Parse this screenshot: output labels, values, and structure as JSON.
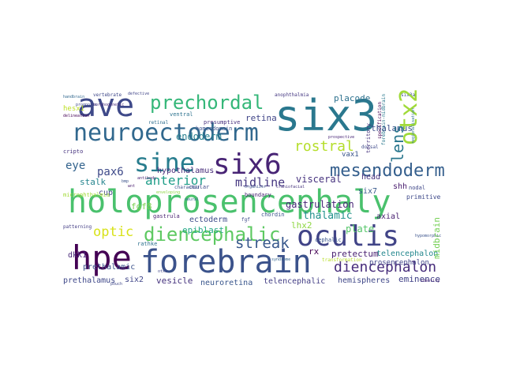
{
  "words": [
    {
      "t": "holoprosencephaly",
      "c": "#4ac16d"
    },
    {
      "t": "six3",
      "c": "#2a788e"
    },
    {
      "t": "forebrain",
      "c": "#3b528b"
    },
    {
      "t": "ave",
      "c": "#3e4989"
    },
    {
      "t": "hpe",
      "c": "#440154"
    },
    {
      "t": "oculis",
      "c": "#414487"
    },
    {
      "t": "six6",
      "c": "#482475"
    },
    {
      "t": "neuroectoderm",
      "c": "#31688e"
    },
    {
      "t": "sine",
      "c": "#287d8e"
    },
    {
      "t": "prechordal",
      "c": "#35b779"
    },
    {
      "t": "otx2",
      "c": "#a0da39"
    },
    {
      "t": "diencephalic",
      "c": "#5ec962"
    },
    {
      "t": "mesendoderm",
      "c": "#355f8d"
    },
    {
      "t": "lens",
      "c": "#2a778e"
    },
    {
      "t": "rostral",
      "c": "#b5de2b"
    },
    {
      "t": "diencephalon",
      "c": "#472d7b"
    },
    {
      "t": "streak",
      "c": "#38588c"
    },
    {
      "t": "anterior",
      "c": "#1f9e89"
    },
    {
      "t": "optic",
      "c": "#d8e219"
    },
    {
      "t": "midline",
      "c": "#453781"
    },
    {
      "t": "pax6",
      "c": "#3e4a89"
    },
    {
      "t": "eye",
      "c": "#33638d"
    },
    {
      "t": "endoderm",
      "c": "#277f8e"
    },
    {
      "t": "retina",
      "c": "#404588"
    },
    {
      "t": "placode",
      "c": "#2d718e"
    },
    {
      "t": "visceral",
      "c": "#46327e"
    },
    {
      "t": "thalamus",
      "c": "#3c4f8a"
    },
    {
      "t": "gastrulation",
      "c": "#482677"
    },
    {
      "t": "thalamic",
      "c": "#21918c"
    },
    {
      "t": "plate",
      "c": "#54c568"
    },
    {
      "t": "epiblast",
      "c": "#22a884"
    },
    {
      "t": "ectoderm",
      "c": "#3e4c8a"
    },
    {
      "t": "pretectum",
      "c": "#481f70"
    },
    {
      "t": "telencephalon",
      "c": "#24878e"
    },
    {
      "t": "hemispheres",
      "c": "#3f4788"
    },
    {
      "t": "eminence",
      "c": "#414287"
    },
    {
      "t": "vesicle",
      "c": "#46337e"
    },
    {
      "t": "neuroretina",
      "c": "#39568c"
    },
    {
      "t": "telencephalic",
      "c": "#433e85"
    },
    {
      "t": "prethalamus",
      "c": "#3f4889"
    },
    {
      "t": "six2",
      "c": "#404688"
    },
    {
      "t": "prethalamic",
      "c": "#3b518b"
    },
    {
      "t": "dkk1",
      "c": "#482878"
    },
    {
      "t": "fgf8",
      "c": "#7ad151"
    },
    {
      "t": "stalk",
      "c": "#25848e"
    },
    {
      "t": "cup",
      "c": "#414487"
    },
    {
      "t": "hypothalamus",
      "c": "#472c7a"
    },
    {
      "t": "head",
      "c": "#46307e"
    },
    {
      "t": "shh",
      "c": "#481b6d"
    },
    {
      "t": "six7",
      "c": "#38598c"
    },
    {
      "t": "lhx2",
      "c": "#8fd744"
    },
    {
      "t": "axial",
      "c": "#482071"
    },
    {
      "t": "rx",
      "c": "#440154"
    },
    {
      "t": "prosencephalon",
      "c": "#404588"
    },
    {
      "t": "midbrain",
      "c": "#75d054"
    },
    {
      "t": "hesx1",
      "c": "#bddf26"
    },
    {
      "t": "vax1",
      "c": "#3a548c"
    },
    {
      "t": "presumptive",
      "c": "#472f7d"
    },
    {
      "t": "homeodomain",
      "c": "#3b528b"
    },
    {
      "t": "ocular",
      "c": "#3e4989"
    },
    {
      "t": "boundary",
      "c": "#482173"
    },
    {
      "t": "ventral",
      "c": "#2c728e"
    },
    {
      "t": "retinal",
      "c": "#2e6e8e"
    },
    {
      "t": "character",
      "c": "#3b528b"
    },
    {
      "t": "chordin",
      "c": "#3b528b"
    },
    {
      "t": "primitive",
      "c": "#3e4989"
    },
    {
      "t": "nodal",
      "c": "#3f4788"
    },
    {
      "t": "microphthalmia",
      "c": "#a2da37"
    },
    {
      "t": "gastrula",
      "c": "#481f70"
    },
    {
      "t": "rathke",
      "c": "#2d708e"
    },
    {
      "t": "cephalic",
      "c": "#39558c"
    },
    {
      "t": "patterning",
      "c": "#433d84"
    },
    {
      "t": "vertebrate",
      "c": "#3f4889"
    },
    {
      "t": "anophthalmia",
      "c": "#453882"
    },
    {
      "t": "territory",
      "c": "#46337e"
    },
    {
      "t": "regionalisation",
      "c": "#2c728e"
    },
    {
      "t": "six3a",
      "c": "#3b528b"
    },
    {
      "t": "defective",
      "c": "#404588"
    },
    {
      "t": "prospective",
      "c": "#482576"
    },
    {
      "t": "dorsal",
      "c": "#3e4a89"
    },
    {
      "t": "transformation",
      "c": "#b8de29"
    },
    {
      "t": "syndrome",
      "c": "#33638d"
    },
    {
      "t": "identity",
      "c": "#482475"
    },
    {
      "t": "cripto",
      "c": "#46337e"
    },
    {
      "t": "morphogenetic",
      "c": "#472c7a"
    },
    {
      "t": "forebrain-midbrain",
      "c": "#2a788e"
    },
    {
      "t": "delineation",
      "c": "#440154"
    },
    {
      "t": "prognosis",
      "c": "#3e4989"
    },
    {
      "t": "handbrain",
      "c": "#31688e"
    },
    {
      "t": "organizer",
      "c": "#3b518b"
    },
    {
      "t": "enveloping",
      "c": "#8fd744"
    },
    {
      "t": "specification",
      "c": "#440154"
    },
    {
      "t": "bmp",
      "c": "#3b528b"
    },
    {
      "t": "fgf",
      "c": "#3e4989"
    },
    {
      "t": "wnt",
      "c": "#481b6d"
    },
    {
      "t": "pouch",
      "c": "#3f4788"
    },
    {
      "t": "neural",
      "c": "#31688e"
    },
    {
      "t": "otx1",
      "c": "#404588"
    },
    {
      "t": "antibody",
      "c": "#482071"
    },
    {
      "t": "hypomorphic",
      "c": "#3b528b"
    },
    {
      "t": "craniofacial",
      "c": "#46337e"
    },
    {
      "t": "pituitary",
      "c": "#46327e"
    },
    {
      "t": "ventralization",
      "c": "#2c728e"
    }
  ]
}
